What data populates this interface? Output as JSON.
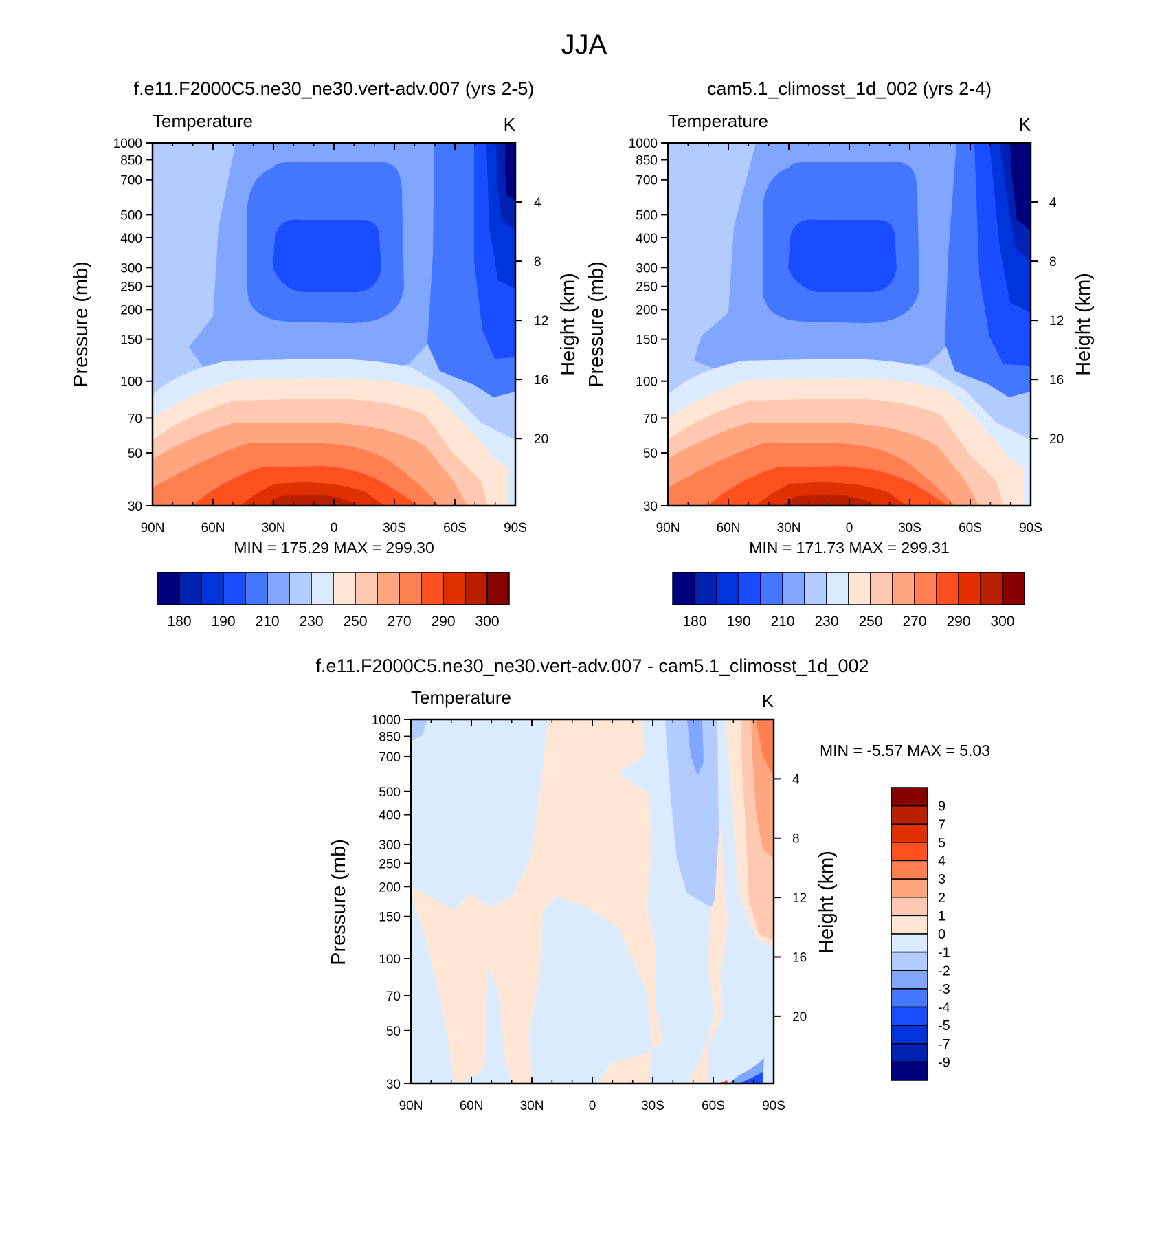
{
  "page_title": "JJA",
  "colors": {
    "abs_palette": [
      "#00007f",
      "#0022b2",
      "#0033d9",
      "#1a4dff",
      "#4477ff",
      "#80a6ff",
      "#b2ccff",
      "#daeaff",
      "#ffe6d4",
      "#ffc8b0",
      "#ffa57f",
      "#ff7f50",
      "#ff5020",
      "#e03000",
      "#b82000",
      "#860000"
    ],
    "diff_palette": [
      "#00007f",
      "#0022b2",
      "#0033d9",
      "#1a4dff",
      "#4477ff",
      "#80a6ff",
      "#b2ccff",
      "#daeaff",
      "#ffe6d4",
      "#ffc8b0",
      "#ffa57f",
      "#ff7f50",
      "#ff5020",
      "#e03000",
      "#b82000",
      "#860000"
    ]
  },
  "panels": [
    {
      "title": "f.e11.F2000C5.ne30_ne30.vert-adv.007 (yrs 2-5)",
      "variable": "Temperature",
      "units": "K",
      "stats": "MIN = 175.29  MAX = 299.30",
      "ylabel": "Pressure (mb)",
      "y2label": "Height (km)"
    },
    {
      "title": "cam5.1_climosst_1d_002 (yrs 2-4)",
      "variable": "Temperature",
      "units": "K",
      "stats": "MIN = 171.73  MAX = 299.31",
      "ylabel": "Pressure (mb)",
      "y2label": "Height (km)"
    },
    {
      "title": "f.e11.F2000C5.ne30_ne30.vert-adv.007 - cam5.1_climosst_1d_002",
      "variable": "Temperature",
      "units": "K",
      "stats": "MIN =  -5.57  MAX =   5.03",
      "ylabel": "Pressure (mb)",
      "y2label": "Height (km)"
    }
  ],
  "chart_data": [
    {
      "type": "contour",
      "title": "f.e11.F2000C5.ne30_ne30.vert-adv.007 (yrs 2-5)",
      "x_ticks": [
        "90N",
        "60N",
        "30N",
        "0",
        "30S",
        "60S",
        "90S"
      ],
      "y_ticks": [
        "30",
        "50",
        "70",
        "100",
        "150",
        "200",
        "250",
        "300",
        "400",
        "500",
        "700",
        "850",
        "1000"
      ],
      "y2_ticks": [
        "20",
        "16",
        "12",
        "8",
        "4"
      ],
      "ylim": [
        1000,
        30
      ],
      "min": 175.29,
      "max": 299.3,
      "colorbar_labels": [
        "180",
        "190",
        "210",
        "230",
        "250",
        "270",
        "290",
        "300"
      ],
      "contour_levels": [
        175,
        180,
        185,
        190,
        200,
        210,
        220,
        230,
        240,
        250,
        260,
        270,
        280,
        290,
        295,
        300
      ]
    },
    {
      "type": "contour",
      "title": "cam5.1_climosst_1d_002 (yrs 2-4)",
      "x_ticks": [
        "90N",
        "60N",
        "30N",
        "0",
        "30S",
        "60S",
        "90S"
      ],
      "y_ticks": [
        "30",
        "50",
        "70",
        "100",
        "150",
        "200",
        "250",
        "300",
        "400",
        "500",
        "700",
        "850",
        "1000"
      ],
      "y2_ticks": [
        "20",
        "16",
        "12",
        "8",
        "4"
      ],
      "ylim": [
        1000,
        30
      ],
      "min": 171.73,
      "max": 299.31,
      "colorbar_labels": [
        "180",
        "190",
        "210",
        "230",
        "250",
        "270",
        "290",
        "300"
      ],
      "contour_levels": [
        175,
        180,
        185,
        190,
        200,
        210,
        220,
        230,
        240,
        250,
        260,
        270,
        280,
        290,
        295,
        300
      ]
    },
    {
      "type": "contour",
      "title": "f.e11.F2000C5.ne30_ne30.vert-adv.007 - cam5.1_climosst_1d_002",
      "x_ticks": [
        "90N",
        "60N",
        "30N",
        "0",
        "30S",
        "60S",
        "90S"
      ],
      "y_ticks": [
        "30",
        "50",
        "70",
        "100",
        "150",
        "200",
        "250",
        "300",
        "400",
        "500",
        "700",
        "850",
        "1000"
      ],
      "y2_ticks": [
        "20",
        "16",
        "12",
        "8",
        "4"
      ],
      "ylim": [
        1000,
        30
      ],
      "min": -5.57,
      "max": 5.03,
      "colorbar_labels": [
        "9",
        "7",
        "5",
        "4",
        "3",
        "2",
        "1",
        "0",
        "-1",
        "-2",
        "-3",
        "-4",
        "-5",
        "-7",
        "-9"
      ]
    }
  ]
}
